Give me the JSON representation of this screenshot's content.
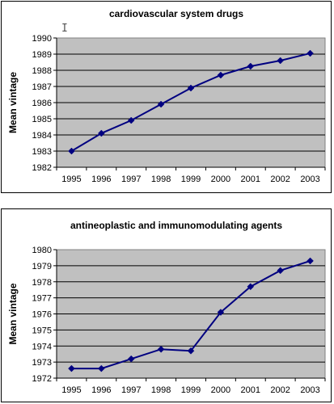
{
  "chart_data": [
    {
      "type": "line",
      "title": "cardiovascular system drugs",
      "xlabel": "",
      "ylabel": "Mean vintage",
      "x": [
        "1995",
        "1996",
        "1997",
        "1998",
        "1999",
        "2000",
        "2001",
        "2002",
        "2003"
      ],
      "series": [
        {
          "values": [
            1983.0,
            1984.1,
            1984.9,
            1985.9,
            1986.9,
            1987.7,
            1988.25,
            1988.6,
            1989.05
          ]
        }
      ],
      "ylim": [
        1982,
        1990
      ],
      "yticks": [
        "1982",
        "1983",
        "1984",
        "1985",
        "1986",
        "1987",
        "1988",
        "1989",
        "1990"
      ],
      "grid": true,
      "legend": "none",
      "colors": {
        "plot_bg": "#c0c0c0",
        "line": "#000080",
        "grid": "#000000"
      }
    },
    {
      "type": "line",
      "title": "antineoplastic and immunomodulating agents",
      "xlabel": "",
      "ylabel": "Mean vintage",
      "x": [
        "1995",
        "1996",
        "1997",
        "1998",
        "1999",
        "2000",
        "2001",
        "2002",
        "2003"
      ],
      "series": [
        {
          "values": [
            1972.6,
            1972.6,
            1973.2,
            1973.8,
            1973.7,
            1976.1,
            1977.7,
            1978.7,
            1979.3
          ]
        }
      ],
      "ylim": [
        1972,
        1980
      ],
      "yticks": [
        "1972",
        "1973",
        "1974",
        "1975",
        "1976",
        "1977",
        "1978",
        "1979",
        "1980"
      ],
      "grid": true,
      "legend": "none",
      "colors": {
        "plot_bg": "#c0c0c0",
        "line": "#000080",
        "grid": "#000000"
      }
    }
  ],
  "icons": {
    "cursor": "text-cursor-icon"
  }
}
